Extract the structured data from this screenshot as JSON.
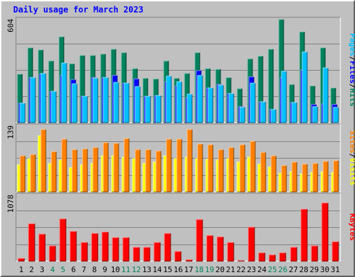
{
  "title": "Daily usage for March 2023",
  "colors": {
    "hits": "#00805c",
    "files": "#0000ff",
    "pages": "#00c0ff",
    "visits": "#ffff00",
    "sites": "#ff8000",
    "kbytes": "#ff0000",
    "weekend_day_label": "#00805c",
    "weekday_day_label": "#000000",
    "panel_background": "#c0c0c0",
    "grid": "#808080"
  },
  "chart_data": [
    {
      "type": "bar",
      "label_max": "604",
      "ylim": [
        0,
        604
      ],
      "legend": [
        "Pages",
        "Files",
        "Hits"
      ],
      "legend_separator": "/",
      "series": [
        {
          "name": "Hits",
          "values": [
            280,
            436,
            424,
            360,
            500,
            344,
            392,
            392,
            400,
            428,
            408,
            316,
            256,
            252,
            360,
            256,
            284,
            408,
            316,
            312,
            260,
            196,
            372,
            388,
            428,
            598,
            220,
            528,
            212,
            436,
            200
          ]
        },
        {
          "name": "Files",
          "values": [
            112,
            260,
            280,
            180,
            272,
            248,
            152,
            260,
            260,
            272,
            228,
            252,
            152,
            156,
            236,
            212,
            144,
            304,
            200,
            220,
            168,
            92,
            264,
            120,
            76,
            260,
            116,
            308,
            104,
            108,
            104
          ]
        },
        {
          "name": "Pages",
          "values": [
            112,
            260,
            284,
            180,
            348,
            224,
            152,
            256,
            260,
            232,
            228,
            208,
            152,
            156,
            268,
            236,
            164,
            272,
            200,
            216,
            168,
            88,
            228,
            120,
            76,
            296,
            116,
            412,
            92,
            320,
            88
          ]
        }
      ]
    },
    {
      "type": "bar",
      "label_max": "139",
      "ylim": [
        0,
        139
      ],
      "legend": [
        "Sites",
        "Visits"
      ],
      "legend_separator": "/",
      "series": [
        {
          "name": "Visits",
          "values": [
            56,
            69,
            118,
            60,
            66,
            50,
            57,
            60,
            75,
            76,
            72,
            70,
            60,
            62,
            76,
            70,
            72,
            70,
            68,
            66,
            70,
            62,
            72,
            58,
            52,
            39,
            42,
            38,
            40,
            42,
            40
          ]
        },
        {
          "name": "Sites",
          "values": [
            75,
            78,
            131,
            84,
            110,
            88,
            90,
            92,
            103,
            102,
            111,
            88,
            89,
            86,
            110,
            110,
            130,
            100,
            98,
            88,
            92,
            98,
            105,
            83,
            76,
            55,
            62,
            58,
            60,
            63,
            65
          ]
        }
      ]
    },
    {
      "type": "bar",
      "label_max": "1078",
      "ylim": [
        0,
        1078
      ],
      "legend": [
        "KBytes"
      ],
      "series": [
        {
          "name": "KBytes",
          "values": [
            40,
            610,
            440,
            250,
            680,
            480,
            300,
            450,
            470,
            380,
            380,
            230,
            230,
            300,
            450,
            160,
            20,
            670,
            420,
            390,
            300,
            15,
            550,
            140,
            100,
            140,
            230,
            840,
            250,
            940,
            310
          ]
        }
      ]
    }
  ],
  "days": [
    "1",
    "2",
    "3",
    "4",
    "5",
    "6",
    "7",
    "8",
    "9",
    "10",
    "11",
    "12",
    "13",
    "14",
    "15",
    "16",
    "17",
    "18",
    "19",
    "20",
    "21",
    "22",
    "23",
    "24",
    "25",
    "26",
    "27",
    "28",
    "29",
    "30",
    "31"
  ],
  "weekend_days": [
    "4",
    "5",
    "11",
    "12",
    "18",
    "19",
    "25",
    "26"
  ]
}
